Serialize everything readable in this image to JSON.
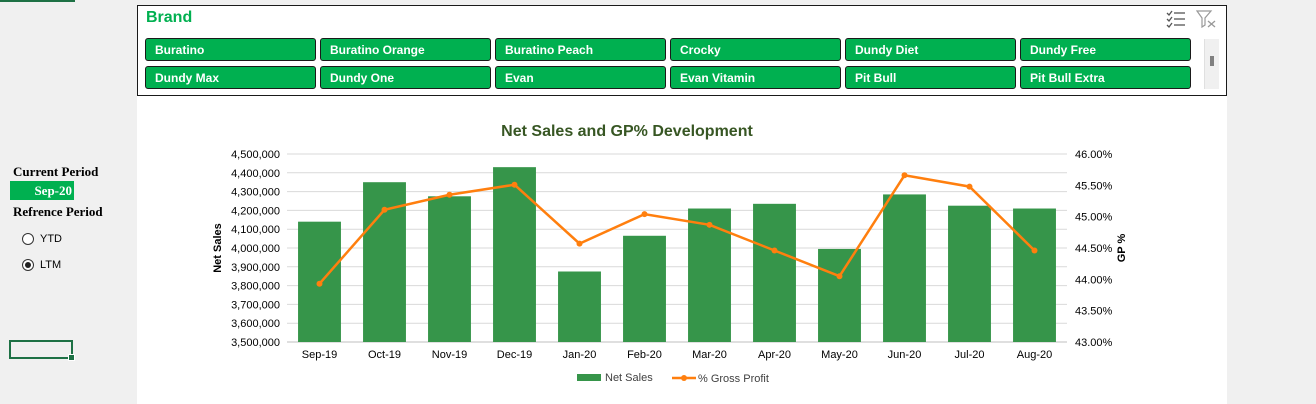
{
  "slicer": {
    "title": "Brand",
    "items": [
      "Buratino",
      "Buratino Orange",
      "Buratino Peach",
      "Crocky",
      "Dundy Diet",
      "Dundy Free",
      "Dundy Max",
      "Dundy One",
      "Evan",
      "Evan Vitamin",
      "Pit Bull",
      "Pit Bull Extra"
    ],
    "icons": [
      "multi-select-icon",
      "clear-filter-icon"
    ]
  },
  "left_panel": {
    "current_period_label": "Current Period",
    "current_period_value": "Sep-20",
    "reference_period_label": "Refrence Period",
    "options": [
      {
        "label": "YTD",
        "checked": false
      },
      {
        "label": "LTM",
        "checked": true
      }
    ]
  },
  "colors": {
    "accent": "#00b050",
    "bar": "#36954a",
    "line": "#ff7f0e",
    "title": "#375623"
  },
  "chart_data": {
    "type": "bar",
    "title": "Net Sales and GP% Development",
    "xlabel": "",
    "ylabel": "Net Sales",
    "y2label": "GP %",
    "categories": [
      "Sep-19",
      "Oct-19",
      "Nov-19",
      "Dec-19",
      "Jan-20",
      "Feb-20",
      "Mar-20",
      "Apr-20",
      "May-20",
      "Jun-20",
      "Jul-20",
      "Aug-20"
    ],
    "ylim": [
      3500000,
      4500000
    ],
    "y_ticks": [
      "3,500,000",
      "3,600,000",
      "3,700,000",
      "3,800,000",
      "3,900,000",
      "4,000,000",
      "4,100,000",
      "4,200,000",
      "4,300,000",
      "4,400,000",
      "4,500,000"
    ],
    "y2lim": [
      43.0,
      46.0
    ],
    "y2_ticks": [
      "43.00%",
      "43.50%",
      "44.00%",
      "44.50%",
      "45.00%",
      "45.50%",
      "46.00%"
    ],
    "grid": true,
    "legend_position": "bottom",
    "series": [
      {
        "name": "Net Sales",
        "type": "bar",
        "axis": "left",
        "values": [
          4140000,
          4350000,
          4275000,
          4430000,
          3875000,
          4065000,
          4210000,
          4235000,
          3995000,
          4285000,
          4225000,
          4210000
        ]
      },
      {
        "name": "% Gross Profit",
        "type": "line",
        "axis": "right",
        "values": [
          43.93,
          45.11,
          45.35,
          45.51,
          44.57,
          45.04,
          44.87,
          44.46,
          44.05,
          45.66,
          45.48,
          44.46
        ]
      }
    ]
  }
}
